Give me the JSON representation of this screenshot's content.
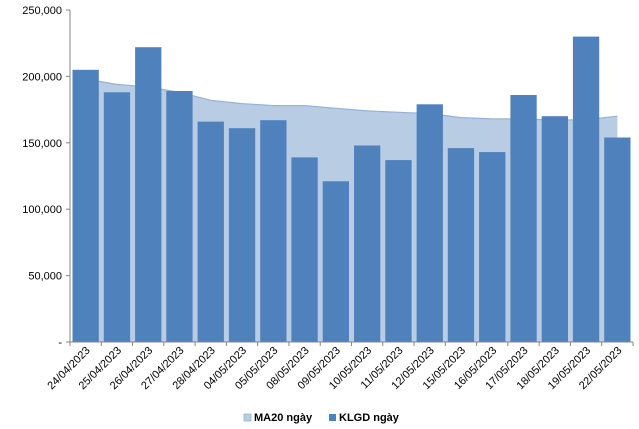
{
  "chart_data": {
    "type": "bar",
    "categories": [
      "24/04/2023",
      "25/04/2023",
      "26/04/2023",
      "27/04/2023",
      "28/04/2023",
      "04/05/2023",
      "05/05/2023",
      "08/05/2023",
      "09/05/2023",
      "10/05/2023",
      "11/05/2023",
      "12/05/2023",
      "15/05/2023",
      "16/05/2023",
      "17/05/2023",
      "18/05/2023",
      "19/05/2023",
      "22/05/2023"
    ],
    "series": [
      {
        "name": "MA20 ngày",
        "kind": "area",
        "color": "#b8cce4",
        "stroke": "#95b3d7",
        "values": [
          198000,
          194000,
          192000,
          188000,
          182000,
          179500,
          178000,
          178000,
          176000,
          174000,
          173000,
          172000,
          169000,
          168000,
          168000,
          167000,
          167500,
          170000
        ]
      },
      {
        "name": "KLGD ngày",
        "kind": "bar",
        "color": "#4f81bd",
        "values": [
          205000,
          188000,
          222000,
          189000,
          166000,
          161000,
          167000,
          139000,
          121000,
          148000,
          137000,
          179000,
          146000,
          143000,
          186000,
          170000,
          230000,
          154000
        ]
      }
    ],
    "y_tick_labels": [
      "-",
      "50,000",
      "100,000",
      "150,000",
      "200,000",
      "250,000"
    ],
    "ylim": [
      0,
      250000
    ],
    "grid": false,
    "legend": "bottom"
  }
}
